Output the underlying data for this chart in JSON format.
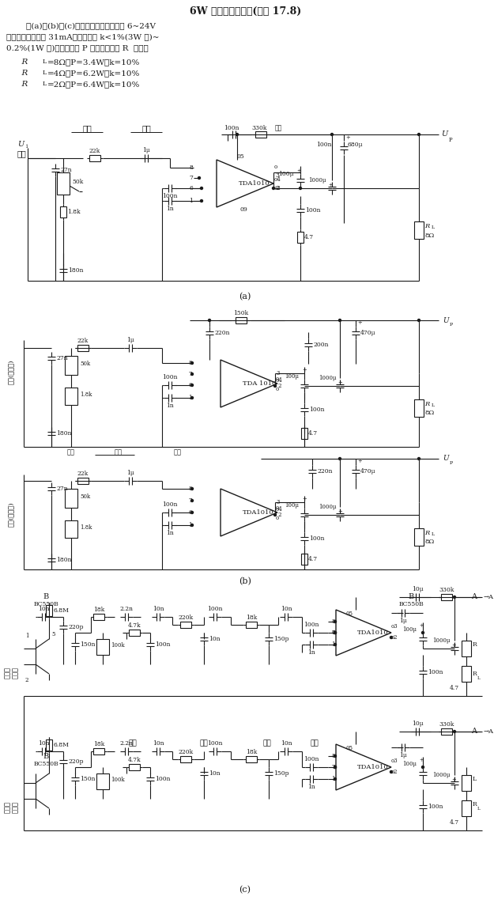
{
  "title": "6W 低频集成放大器(如图 17.8)",
  "desc1": "    图(a)、(b)、(c)三个电路电源电压可在 6~24V",
  "desc2": "之间，静态电流约 31mA，畸变系数 k<1%(3W 时)~",
  "desc3": "0.2%(1W 时)。输出功率 P 以及负载电阻 R  如下：",
  "desc4": "      R  =8Ω，P=3.4W，k=10%",
  "desc5": "      R  =4Ω，P=6.2W，k=10%",
  "desc6": "      R  =2Ω，P=6.4W，k=10%",
  "bg_color": "#ffffff",
  "line_color": "#1a1a1a",
  "fig_width": 6.21,
  "fig_height": 11.62
}
